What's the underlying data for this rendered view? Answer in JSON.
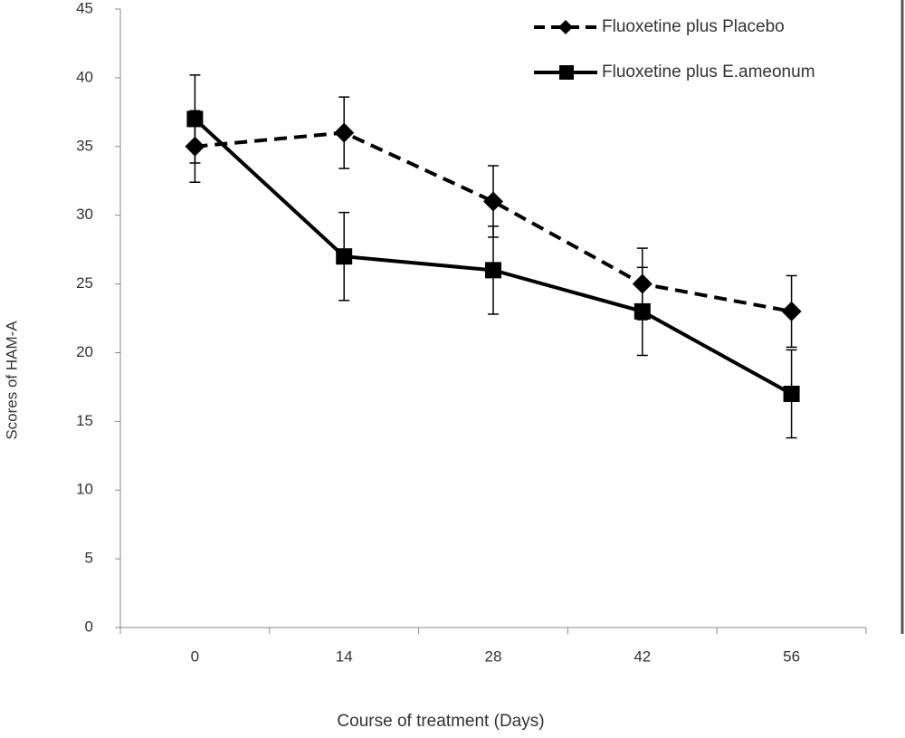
{
  "chart_data": {
    "type": "line",
    "y_label": "Scores of HAM-A",
    "x_label": "Course of treatment (Days)",
    "categories": [
      "0",
      "14",
      "28",
      "42",
      "56"
    ],
    "series": [
      {
        "name": "Fluoxetine plus Placebo",
        "color": "#000000",
        "line_style": "dashed",
        "marker": "diamond",
        "values": [
          35,
          36,
          31,
          25,
          23
        ],
        "errors": [
          2.6,
          2.6,
          2.6,
          2.6,
          2.6
        ]
      },
      {
        "name": "Fluoxetine plus E.ameonum",
        "color": "#000000",
        "line_style": "solid",
        "marker": "square",
        "values": [
          37,
          27,
          26,
          23,
          17
        ],
        "errors": [
          3.2,
          3.2,
          3.2,
          3.2,
          3.2
        ]
      }
    ],
    "ylim": [
      0,
      45
    ],
    "yticks": [
      0,
      5,
      10,
      15,
      20,
      25,
      30,
      35,
      40,
      45
    ],
    "grid": false,
    "legend": "top-right"
  }
}
